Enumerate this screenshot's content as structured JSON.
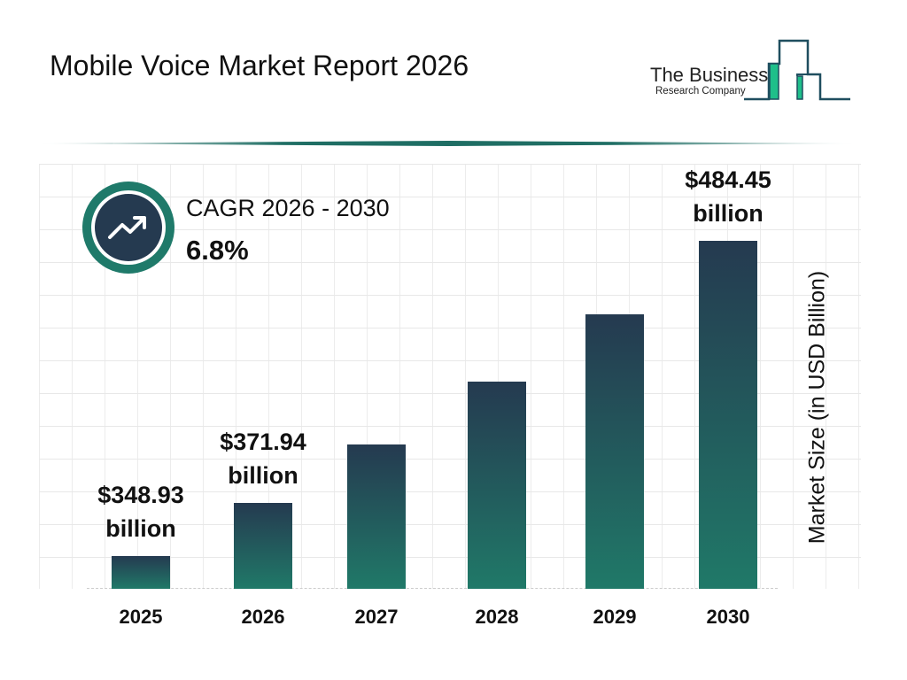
{
  "title": "Mobile Voice Market Report 2026",
  "logo": {
    "line1": "The Business",
    "line2": "Research Company",
    "colors": [
      "#1f4e5f",
      "#1fbf8a"
    ]
  },
  "cagr": {
    "label": "CAGR 2026 - 2030",
    "value": "6.8%",
    "icon": "trending-up-icon"
  },
  "colors": {
    "bar_top": "#253a50",
    "bar_bottom": "#207968",
    "accent": "#1f7a6a"
  },
  "chart_data": {
    "type": "bar",
    "title": "Mobile Voice Market Report 2026",
    "categories": [
      "2025",
      "2026",
      "2027",
      "2028",
      "2029",
      "2030"
    ],
    "values": [
      348.93,
      371.94,
      397.2,
      424.2,
      453.1,
      484.45
    ],
    "data_labels": [
      {
        "value": "$348.93",
        "unit": "billion"
      },
      {
        "value": "$371.94",
        "unit": "billion"
      },
      null,
      null,
      null,
      {
        "value": "$484.45",
        "unit": "billion"
      }
    ],
    "xlabel": "",
    "ylabel": "Market Size (in USD Billion)",
    "ylim": [
      335,
      485
    ],
    "grid": true,
    "legend": "none"
  }
}
